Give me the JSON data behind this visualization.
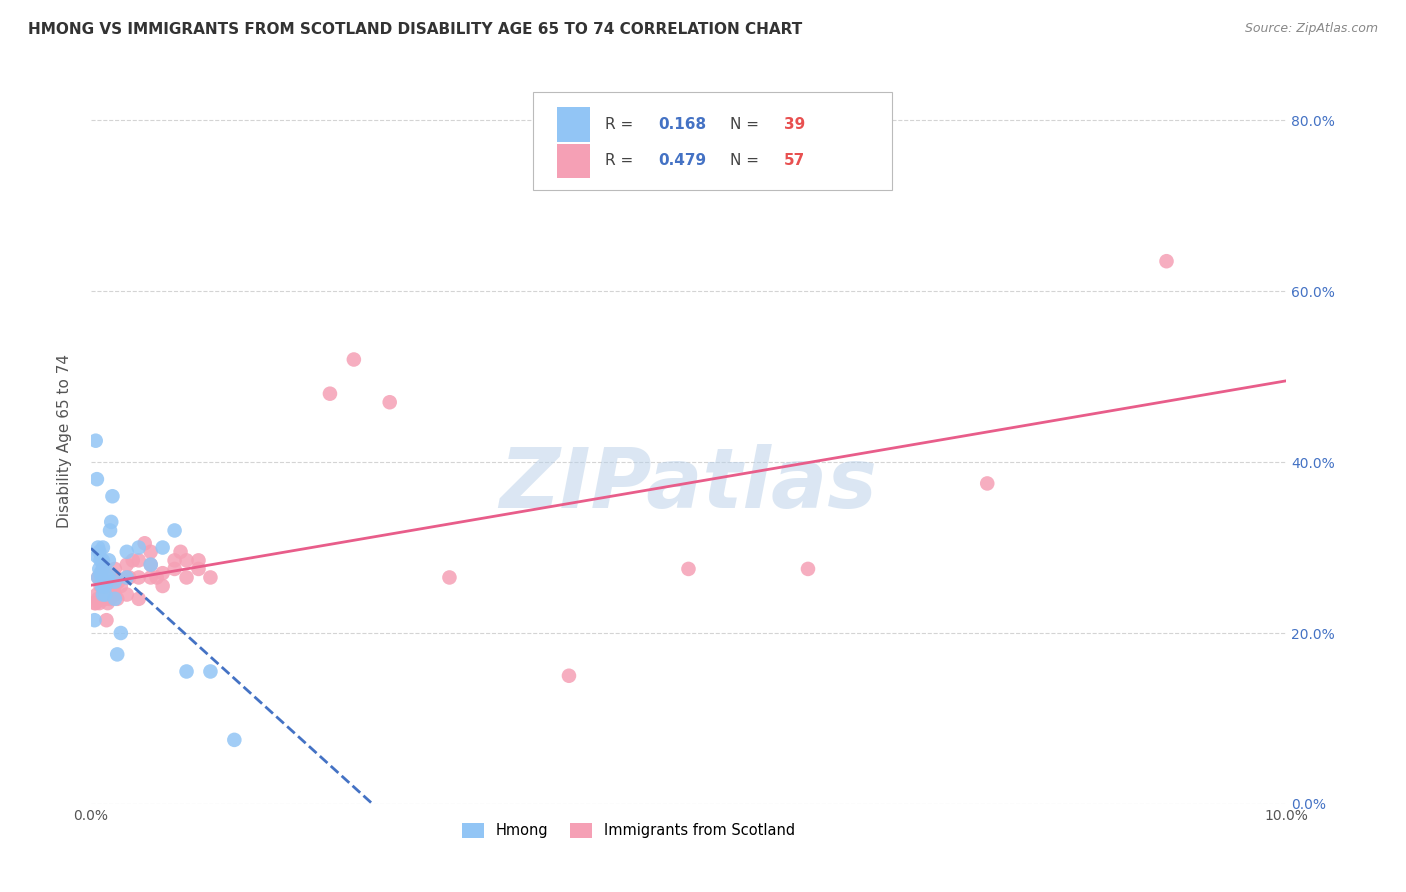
{
  "title": "HMONG VS IMMIGRANTS FROM SCOTLAND DISABILITY AGE 65 TO 74 CORRELATION CHART",
  "source": "Source: ZipAtlas.com",
  "ylabel": "Disability Age 65 to 74",
  "watermark": "ZIPatlas",
  "xmin": 0.0,
  "xmax": 0.1,
  "ymin": 0.0,
  "ymax": 0.85,
  "ytick_values": [
    0.0,
    0.2,
    0.4,
    0.6,
    0.8
  ],
  "xtick_values": [
    0.0,
    0.01,
    0.02,
    0.03,
    0.04,
    0.05,
    0.06,
    0.07,
    0.08,
    0.09,
    0.1
  ],
  "hmong_R": 0.168,
  "hmong_N": 39,
  "scotland_R": 0.479,
  "scotland_N": 57,
  "hmong_color": "#92c5f5",
  "scotland_color": "#f5a0b5",
  "hmong_line_color": "#4472c4",
  "scotland_line_color": "#e85d8a",
  "grid_color": "#d0d0d0",
  "background_color": "#ffffff",
  "hmong_x": [
    0.0003,
    0.0004,
    0.0005,
    0.0005,
    0.0006,
    0.0006,
    0.0007,
    0.0007,
    0.0008,
    0.0008,
    0.0009,
    0.0009,
    0.001,
    0.001,
    0.001,
    0.001,
    0.001,
    0.0012,
    0.0012,
    0.0013,
    0.0014,
    0.0015,
    0.0015,
    0.0016,
    0.0017,
    0.0018,
    0.002,
    0.002,
    0.0022,
    0.0025,
    0.003,
    0.003,
    0.004,
    0.005,
    0.006,
    0.007,
    0.008,
    0.01,
    0.012
  ],
  "hmong_y": [
    0.215,
    0.425,
    0.29,
    0.38,
    0.265,
    0.3,
    0.275,
    0.295,
    0.27,
    0.285,
    0.265,
    0.255,
    0.245,
    0.255,
    0.275,
    0.285,
    0.3,
    0.245,
    0.255,
    0.26,
    0.265,
    0.27,
    0.285,
    0.32,
    0.33,
    0.36,
    0.24,
    0.26,
    0.175,
    0.2,
    0.265,
    0.295,
    0.3,
    0.28,
    0.3,
    0.32,
    0.155,
    0.155,
    0.075
  ],
  "scotland_x": [
    0.0003,
    0.0004,
    0.0005,
    0.0006,
    0.0006,
    0.0007,
    0.0008,
    0.0009,
    0.001,
    0.001,
    0.001,
    0.0012,
    0.0013,
    0.0014,
    0.0015,
    0.0015,
    0.0016,
    0.0017,
    0.0018,
    0.002,
    0.002,
    0.002,
    0.0022,
    0.0023,
    0.0025,
    0.003,
    0.003,
    0.003,
    0.0032,
    0.0035,
    0.004,
    0.004,
    0.004,
    0.0045,
    0.005,
    0.005,
    0.005,
    0.0055,
    0.006,
    0.006,
    0.007,
    0.007,
    0.0075,
    0.008,
    0.008,
    0.009,
    0.009,
    0.01,
    0.02,
    0.022,
    0.025,
    0.03,
    0.04,
    0.05,
    0.06,
    0.075,
    0.09
  ],
  "scotland_y": [
    0.235,
    0.235,
    0.245,
    0.24,
    0.265,
    0.235,
    0.255,
    0.26,
    0.24,
    0.255,
    0.275,
    0.24,
    0.215,
    0.235,
    0.245,
    0.255,
    0.24,
    0.255,
    0.265,
    0.245,
    0.255,
    0.275,
    0.24,
    0.26,
    0.255,
    0.245,
    0.265,
    0.28,
    0.265,
    0.285,
    0.24,
    0.265,
    0.285,
    0.305,
    0.265,
    0.28,
    0.295,
    0.265,
    0.255,
    0.27,
    0.275,
    0.285,
    0.295,
    0.285,
    0.265,
    0.275,
    0.285,
    0.265,
    0.48,
    0.52,
    0.47,
    0.265,
    0.15,
    0.275,
    0.275,
    0.375,
    0.635
  ]
}
